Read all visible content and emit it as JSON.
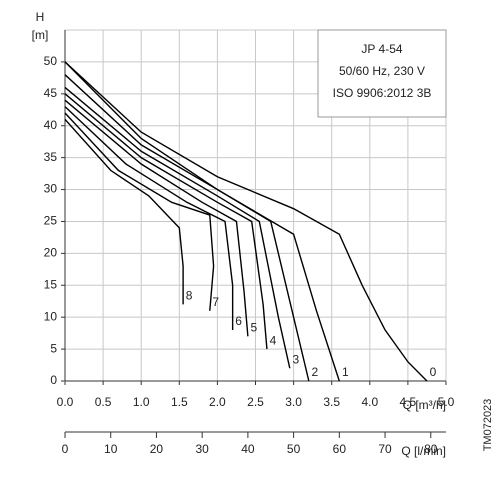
{
  "chart_data": {
    "type": "line",
    "info": [
      "JP 4-54",
      "50/60 Hz, 230 V",
      "ISO 9906:2012 3B"
    ],
    "y_label_top": "H",
    "y_label_unit": "[m]",
    "x_label": "Q [m³/h]",
    "x2_label": "Q [l/min]",
    "figure_code": "TM072023",
    "xlim": [
      0,
      5
    ],
    "xticks": [
      {
        "value": 0,
        "label": "0.0"
      },
      {
        "value": 0.5,
        "label": "0.5"
      },
      {
        "value": 1,
        "label": "1.0"
      },
      {
        "value": 1.5,
        "label": "1.5"
      },
      {
        "value": 2,
        "label": "2.0"
      },
      {
        "value": 2.5,
        "label": "2.5"
      },
      {
        "value": 3,
        "label": "3.0"
      },
      {
        "value": 3.5,
        "label": "3.5"
      },
      {
        "value": 4,
        "label": "4.0"
      },
      {
        "value": 4.5,
        "label": "4.5"
      },
      {
        "value": 5,
        "label": "5.0"
      }
    ],
    "x2lim": [
      0,
      83.33
    ],
    "x2ticks": [
      0,
      10,
      20,
      30,
      40,
      50,
      60,
      70,
      80
    ],
    "ylim": [
      0,
      55
    ],
    "yticks": [
      0,
      5,
      10,
      15,
      20,
      25,
      30,
      35,
      40,
      45,
      50
    ],
    "grid": true,
    "series": [
      {
        "name": "0",
        "color": "#000000",
        "x": [
          0,
          1,
          2,
          3,
          3.6,
          3.9,
          4.2,
          4.5,
          4.75
        ],
        "values": [
          50,
          39,
          32,
          27,
          23,
          15,
          8,
          3,
          0
        ]
      },
      {
        "name": "1",
        "color": "#000000",
        "x": [
          0,
          1,
          2,
          3,
          3.3,
          3.6
        ],
        "values": [
          50,
          38,
          30,
          23,
          11,
          0
        ]
      },
      {
        "name": "2",
        "color": "#000000",
        "x": [
          0,
          1,
          2,
          2.7,
          3.0,
          3.2
        ],
        "values": [
          48,
          37,
          30,
          25,
          10,
          0
        ]
      },
      {
        "name": "3",
        "color": "#000000",
        "x": [
          0,
          1,
          2,
          2.55,
          2.8,
          2.95
        ],
        "values": [
          46,
          36,
          29,
          25,
          10,
          2
        ]
      },
      {
        "name": "4",
        "color": "#000000",
        "x": [
          0,
          1,
          2,
          2.45,
          2.6,
          2.65
        ],
        "values": [
          45,
          35,
          28,
          25,
          12,
          5
        ]
      },
      {
        "name": "5",
        "color": "#000000",
        "x": [
          0,
          1,
          1.8,
          2.25,
          2.35,
          2.4
        ],
        "values": [
          44,
          34,
          28,
          25,
          14,
          7
        ]
      },
      {
        "name": "6",
        "color": "#000000",
        "x": [
          0,
          0.8,
          1.6,
          2.1,
          2.2,
          2.2
        ],
        "values": [
          43,
          34,
          28,
          25,
          15,
          8
        ]
      },
      {
        "name": "7",
        "color": "#000000",
        "x": [
          0,
          0.7,
          1.4,
          1.9,
          1.95,
          1.9
        ],
        "values": [
          42,
          33,
          28,
          26,
          18,
          11
        ]
      },
      {
        "name": "8",
        "color": "#000000",
        "x": [
          0,
          0.6,
          1.1,
          1.5,
          1.55,
          1.55
        ],
        "values": [
          41,
          33,
          29,
          24,
          18,
          12
        ]
      }
    ]
  }
}
